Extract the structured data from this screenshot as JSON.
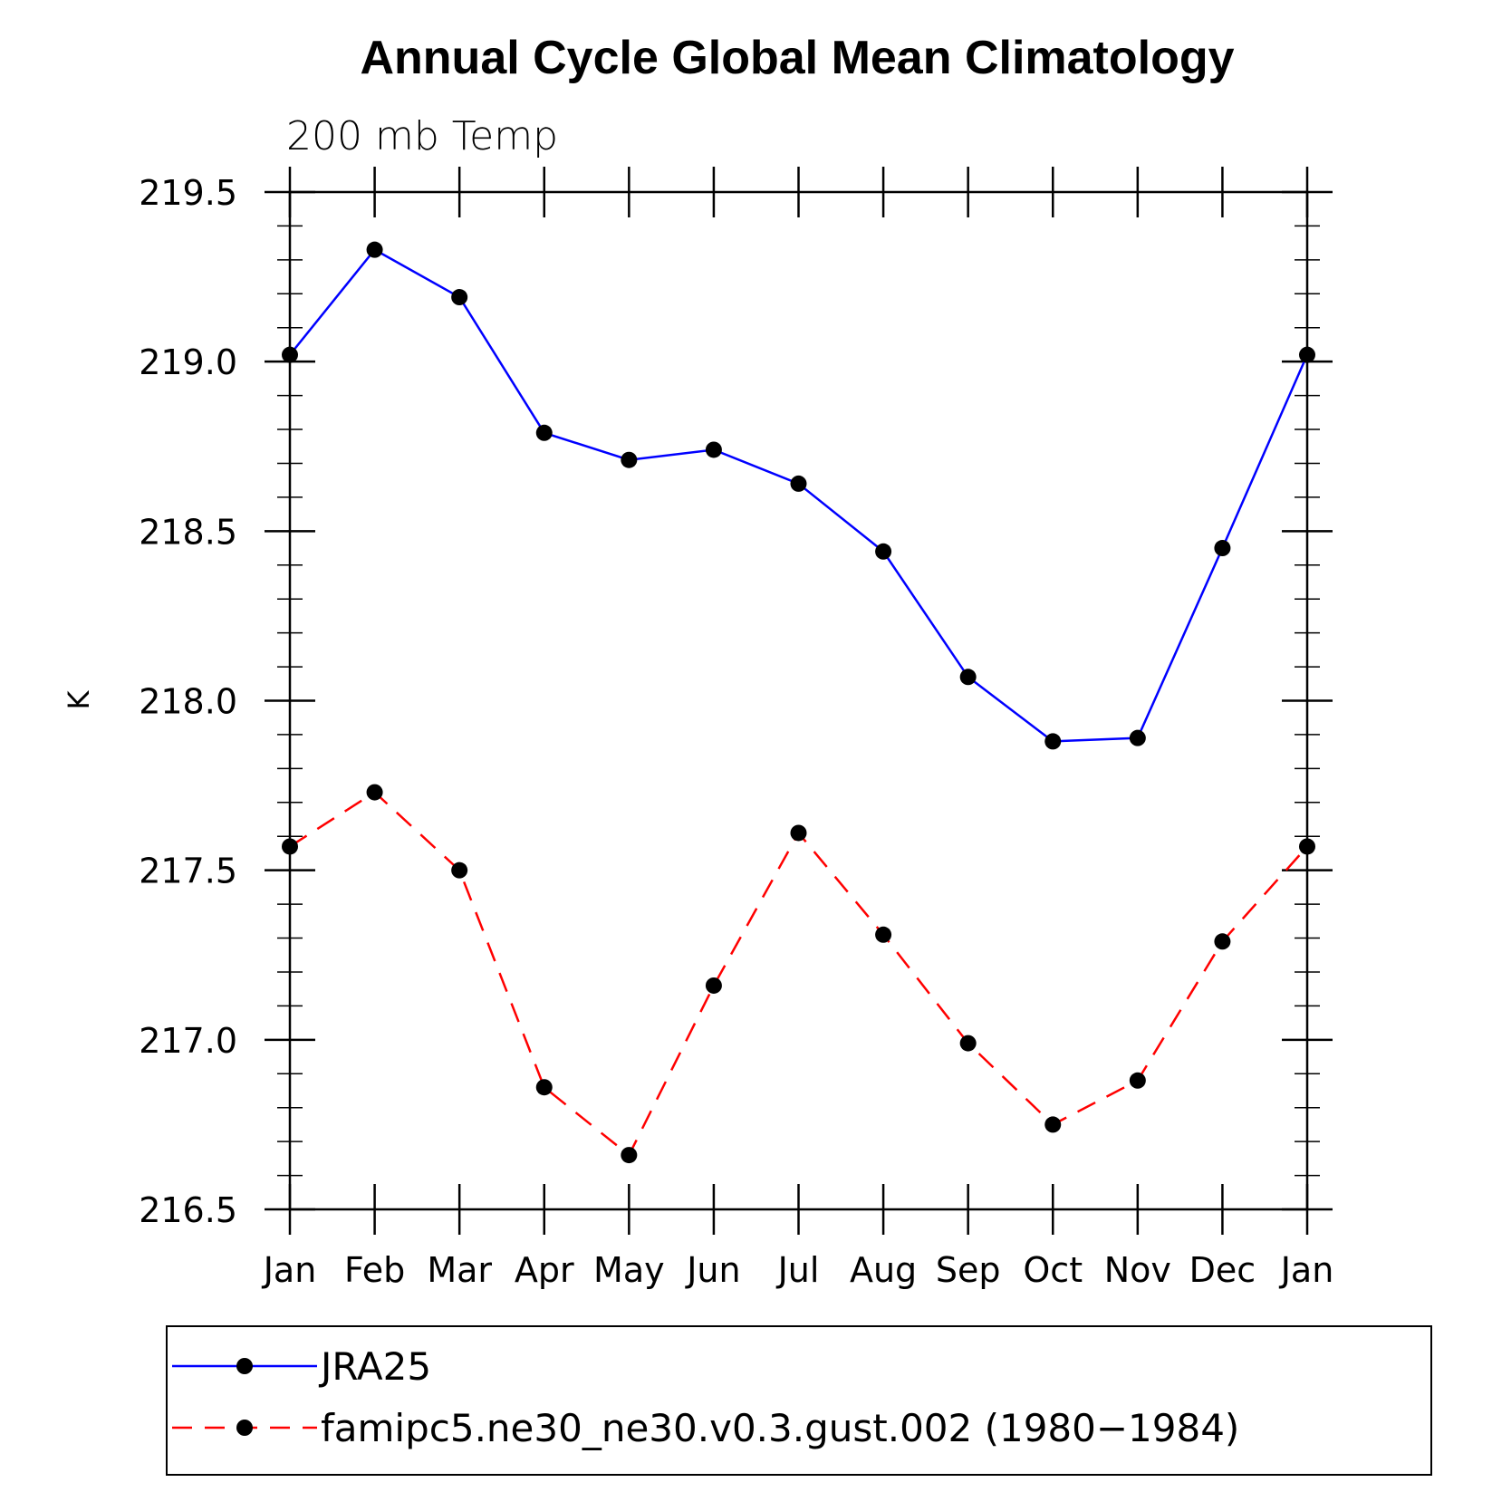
{
  "chart_data": {
    "type": "line",
    "title": "Annual Cycle Global Mean Climatology",
    "subtitle": "200 mb Temp",
    "xlabel": "",
    "ylabel": "K",
    "categories": [
      "Jan",
      "Feb",
      "Mar",
      "Apr",
      "May",
      "Jun",
      "Jul",
      "Aug",
      "Sep",
      "Oct",
      "Nov",
      "Dec",
      "Jan"
    ],
    "ylim": [
      216.5,
      219.5
    ],
    "yticks": [
      "216.5",
      "217.0",
      "217.5",
      "218.0",
      "218.5",
      "219.0",
      "219.5"
    ],
    "series": [
      {
        "name": "JRA25",
        "color": "#0000ff",
        "dash": "solid",
        "values": [
          219.02,
          219.33,
          219.19,
          218.79,
          218.71,
          218.74,
          218.64,
          218.44,
          218.07,
          217.88,
          217.89,
          218.45,
          219.02
        ]
      },
      {
        "name": "famipc5.ne30_ne30.v0.3.gust.002 (1980−1984)",
        "color": "#ff0000",
        "dash": "dashed",
        "values": [
          217.57,
          217.73,
          217.5,
          216.86,
          216.66,
          217.16,
          217.61,
          217.31,
          216.99,
          216.75,
          216.88,
          217.29,
          217.57
        ]
      }
    ],
    "marker_color": "#000000",
    "legend_position": "bottom"
  }
}
